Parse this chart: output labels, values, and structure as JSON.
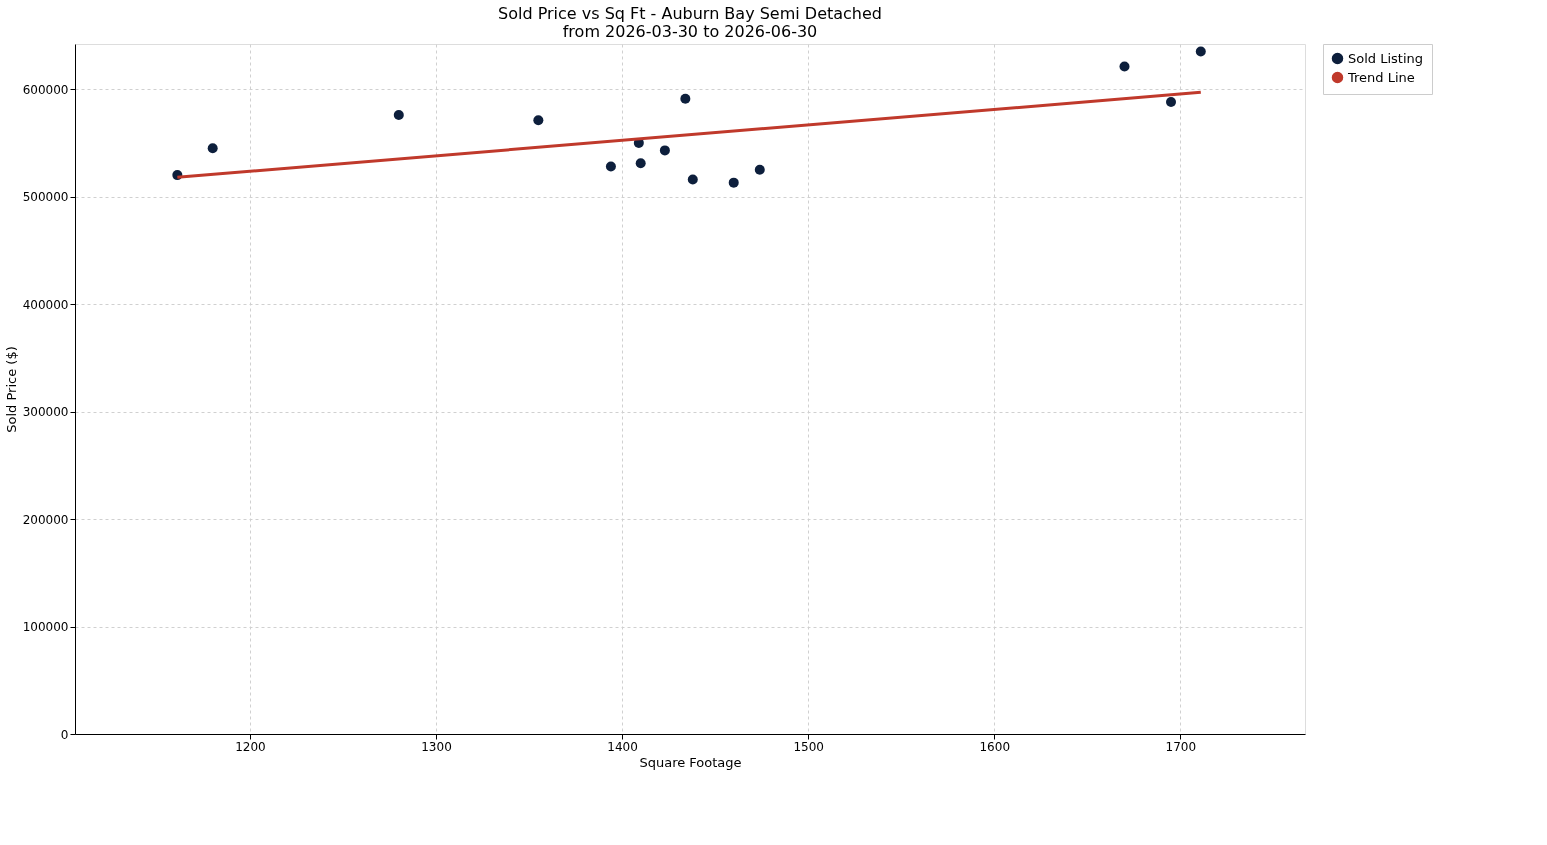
{
  "chart_data": {
    "type": "scatter",
    "title": "Sold Price vs Sq Ft - Auburn Bay Semi Detached",
    "subtitle": "from 2026-03-30 to 2026-06-30",
    "xlabel": "Square Footage",
    "ylabel": "Sold Price ($)",
    "xlim": [
      1106,
      1767
    ],
    "xticks": [
      1200,
      1300,
      1400,
      1500,
      1600,
      1700
    ],
    "ylim": [
      0,
      642000
    ],
    "yticks": [
      0,
      100000,
      200000,
      300000,
      400000,
      500000,
      600000
    ],
    "grid": true,
    "legend": "right",
    "series": [
      {
        "name": "Sold Listing",
        "type": "scatter",
        "marker": "circle",
        "color": "#0d1f3c",
        "x": [
          1161,
          1180,
          1280,
          1355,
          1394,
          1409,
          1410,
          1423,
          1434,
          1438,
          1460,
          1474,
          1670,
          1695,
          1711
        ],
        "values": [
          520000,
          545000,
          576000,
          571000,
          528000,
          550000,
          531000,
          543000,
          591000,
          516000,
          513000,
          525000,
          621000,
          588000,
          635000
        ]
      },
      {
        "name": "Trend Line",
        "type": "line",
        "color": "#c0392b",
        "x": [
          1161,
          1711
        ],
        "values": [
          518000,
          597000
        ]
      }
    ]
  }
}
